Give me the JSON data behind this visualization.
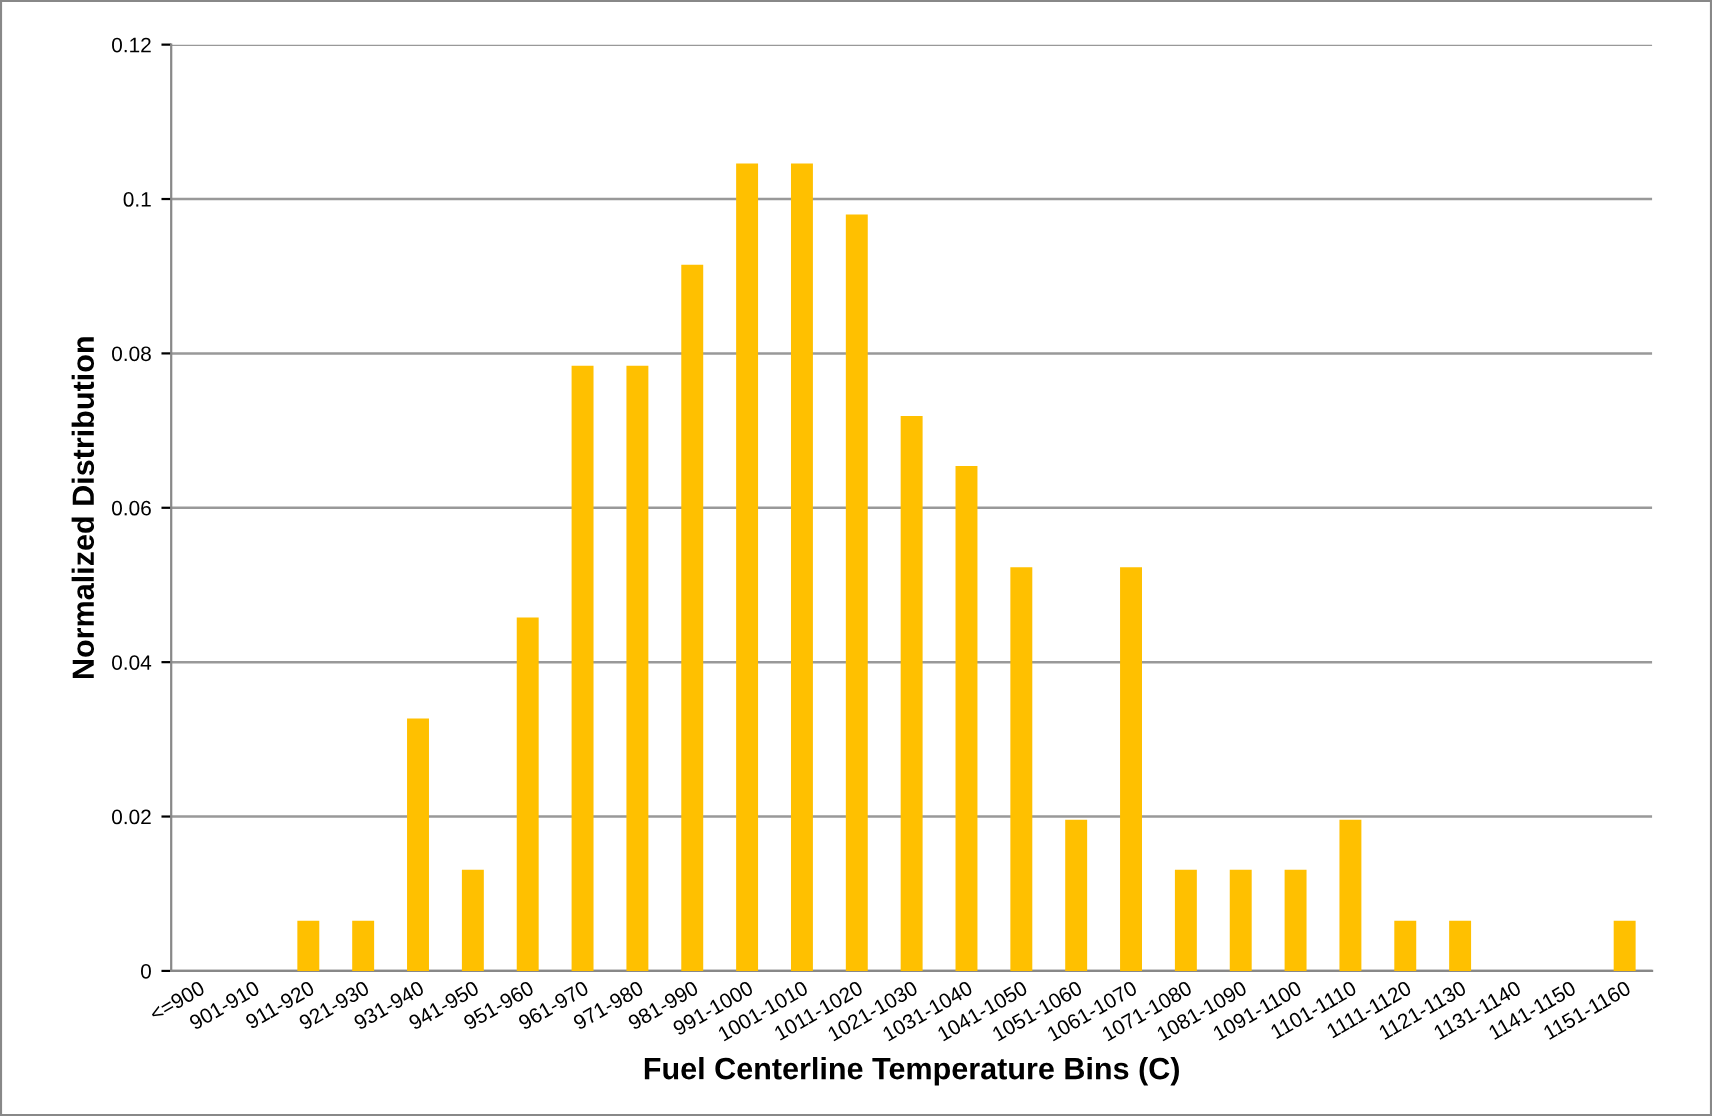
{
  "chart_data": {
    "type": "bar",
    "xlabel": "Fuel Centerline Temperature Bins (C)",
    "ylabel": "Normalized Distribution",
    "categories": [
      "<=900",
      "901-910",
      "911-920",
      "921-930",
      "931-940",
      "941-950",
      "951-960",
      "961-970",
      "971-980",
      "981-990",
      "991-1000",
      "1001-1010",
      "1011-1020",
      "1021-1030",
      "1031-1040",
      "1041-1050",
      "1051-1060",
      "1061-1070",
      "1071-1080",
      "1081-1090",
      "1091-1100",
      "1101-1110",
      "1111-1120",
      "1121-1130",
      "1131-1140",
      "1141-1150",
      "1151-1160"
    ],
    "values": [
      0,
      0,
      0.0065,
      0.0065,
      0.0327,
      0.0131,
      0.0458,
      0.0784,
      0.0784,
      0.0915,
      0.1046,
      0.1046,
      0.098,
      0.0719,
      0.0654,
      0.0523,
      0.0196,
      0.0523,
      0.0131,
      0.0131,
      0.0131,
      0.0196,
      0.0065,
      0.0065,
      0,
      0,
      0.0065
    ],
    "color": "#ffc000",
    "ylim": [
      0,
      0.12
    ],
    "yticks": [
      0,
      0.02,
      0.04,
      0.06,
      0.08,
      0.1,
      0.12
    ],
    "grid": "y"
  }
}
